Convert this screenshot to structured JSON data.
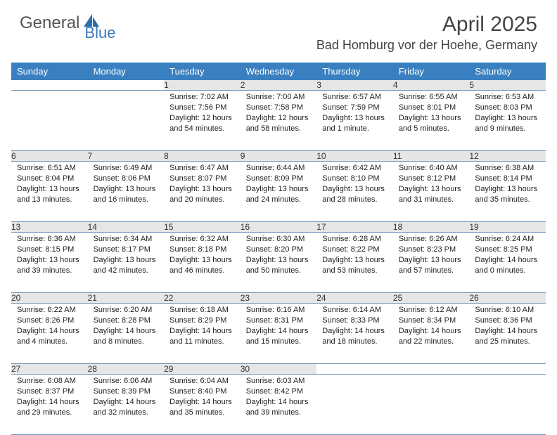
{
  "brand": {
    "part1": "General",
    "part2": "Blue"
  },
  "title": "April 2025",
  "location": "Bad Homburg vor der Hoehe, Germany",
  "colors": {
    "header_bg": "#3a80c0",
    "header_fg": "#ffffff",
    "daynum_bg": "#e6e6e6",
    "row_divider": "#6a93b8",
    "brand_blue": "#3a7ab8"
  },
  "day_headers": [
    "Sunday",
    "Monday",
    "Tuesday",
    "Wednesday",
    "Thursday",
    "Friday",
    "Saturday"
  ],
  "weeks": [
    [
      {
        "n": "",
        "sunrise": "",
        "sunset": "",
        "daylight": ""
      },
      {
        "n": "",
        "sunrise": "",
        "sunset": "",
        "daylight": ""
      },
      {
        "n": "1",
        "sunrise": "Sunrise: 7:02 AM",
        "sunset": "Sunset: 7:56 PM",
        "daylight": "Daylight: 12 hours and 54 minutes."
      },
      {
        "n": "2",
        "sunrise": "Sunrise: 7:00 AM",
        "sunset": "Sunset: 7:58 PM",
        "daylight": "Daylight: 12 hours and 58 minutes."
      },
      {
        "n": "3",
        "sunrise": "Sunrise: 6:57 AM",
        "sunset": "Sunset: 7:59 PM",
        "daylight": "Daylight: 13 hours and 1 minute."
      },
      {
        "n": "4",
        "sunrise": "Sunrise: 6:55 AM",
        "sunset": "Sunset: 8:01 PM",
        "daylight": "Daylight: 13 hours and 5 minutes."
      },
      {
        "n": "5",
        "sunrise": "Sunrise: 6:53 AM",
        "sunset": "Sunset: 8:03 PM",
        "daylight": "Daylight: 13 hours and 9 minutes."
      }
    ],
    [
      {
        "n": "6",
        "sunrise": "Sunrise: 6:51 AM",
        "sunset": "Sunset: 8:04 PM",
        "daylight": "Daylight: 13 hours and 13 minutes."
      },
      {
        "n": "7",
        "sunrise": "Sunrise: 6:49 AM",
        "sunset": "Sunset: 8:06 PM",
        "daylight": "Daylight: 13 hours and 16 minutes."
      },
      {
        "n": "8",
        "sunrise": "Sunrise: 6:47 AM",
        "sunset": "Sunset: 8:07 PM",
        "daylight": "Daylight: 13 hours and 20 minutes."
      },
      {
        "n": "9",
        "sunrise": "Sunrise: 6:44 AM",
        "sunset": "Sunset: 8:09 PM",
        "daylight": "Daylight: 13 hours and 24 minutes."
      },
      {
        "n": "10",
        "sunrise": "Sunrise: 6:42 AM",
        "sunset": "Sunset: 8:10 PM",
        "daylight": "Daylight: 13 hours and 28 minutes."
      },
      {
        "n": "11",
        "sunrise": "Sunrise: 6:40 AM",
        "sunset": "Sunset: 8:12 PM",
        "daylight": "Daylight: 13 hours and 31 minutes."
      },
      {
        "n": "12",
        "sunrise": "Sunrise: 6:38 AM",
        "sunset": "Sunset: 8:14 PM",
        "daylight": "Daylight: 13 hours and 35 minutes."
      }
    ],
    [
      {
        "n": "13",
        "sunrise": "Sunrise: 6:36 AM",
        "sunset": "Sunset: 8:15 PM",
        "daylight": "Daylight: 13 hours and 39 minutes."
      },
      {
        "n": "14",
        "sunrise": "Sunrise: 6:34 AM",
        "sunset": "Sunset: 8:17 PM",
        "daylight": "Daylight: 13 hours and 42 minutes."
      },
      {
        "n": "15",
        "sunrise": "Sunrise: 6:32 AM",
        "sunset": "Sunset: 8:18 PM",
        "daylight": "Daylight: 13 hours and 46 minutes."
      },
      {
        "n": "16",
        "sunrise": "Sunrise: 6:30 AM",
        "sunset": "Sunset: 8:20 PM",
        "daylight": "Daylight: 13 hours and 50 minutes."
      },
      {
        "n": "17",
        "sunrise": "Sunrise: 6:28 AM",
        "sunset": "Sunset: 8:22 PM",
        "daylight": "Daylight: 13 hours and 53 minutes."
      },
      {
        "n": "18",
        "sunrise": "Sunrise: 6:26 AM",
        "sunset": "Sunset: 8:23 PM",
        "daylight": "Daylight: 13 hours and 57 minutes."
      },
      {
        "n": "19",
        "sunrise": "Sunrise: 6:24 AM",
        "sunset": "Sunset: 8:25 PM",
        "daylight": "Daylight: 14 hours and 0 minutes."
      }
    ],
    [
      {
        "n": "20",
        "sunrise": "Sunrise: 6:22 AM",
        "sunset": "Sunset: 8:26 PM",
        "daylight": "Daylight: 14 hours and 4 minutes."
      },
      {
        "n": "21",
        "sunrise": "Sunrise: 6:20 AM",
        "sunset": "Sunset: 8:28 PM",
        "daylight": "Daylight: 14 hours and 8 minutes."
      },
      {
        "n": "22",
        "sunrise": "Sunrise: 6:18 AM",
        "sunset": "Sunset: 8:29 PM",
        "daylight": "Daylight: 14 hours and 11 minutes."
      },
      {
        "n": "23",
        "sunrise": "Sunrise: 6:16 AM",
        "sunset": "Sunset: 8:31 PM",
        "daylight": "Daylight: 14 hours and 15 minutes."
      },
      {
        "n": "24",
        "sunrise": "Sunrise: 6:14 AM",
        "sunset": "Sunset: 8:33 PM",
        "daylight": "Daylight: 14 hours and 18 minutes."
      },
      {
        "n": "25",
        "sunrise": "Sunrise: 6:12 AM",
        "sunset": "Sunset: 8:34 PM",
        "daylight": "Daylight: 14 hours and 22 minutes."
      },
      {
        "n": "26",
        "sunrise": "Sunrise: 6:10 AM",
        "sunset": "Sunset: 8:36 PM",
        "daylight": "Daylight: 14 hours and 25 minutes."
      }
    ],
    [
      {
        "n": "27",
        "sunrise": "Sunrise: 6:08 AM",
        "sunset": "Sunset: 8:37 PM",
        "daylight": "Daylight: 14 hours and 29 minutes."
      },
      {
        "n": "28",
        "sunrise": "Sunrise: 6:06 AM",
        "sunset": "Sunset: 8:39 PM",
        "daylight": "Daylight: 14 hours and 32 minutes."
      },
      {
        "n": "29",
        "sunrise": "Sunrise: 6:04 AM",
        "sunset": "Sunset: 8:40 PM",
        "daylight": "Daylight: 14 hours and 35 minutes."
      },
      {
        "n": "30",
        "sunrise": "Sunrise: 6:03 AM",
        "sunset": "Sunset: 8:42 PM",
        "daylight": "Daylight: 14 hours and 39 minutes."
      },
      {
        "n": "",
        "sunrise": "",
        "sunset": "",
        "daylight": ""
      },
      {
        "n": "",
        "sunrise": "",
        "sunset": "",
        "daylight": ""
      },
      {
        "n": "",
        "sunrise": "",
        "sunset": "",
        "daylight": ""
      }
    ]
  ]
}
